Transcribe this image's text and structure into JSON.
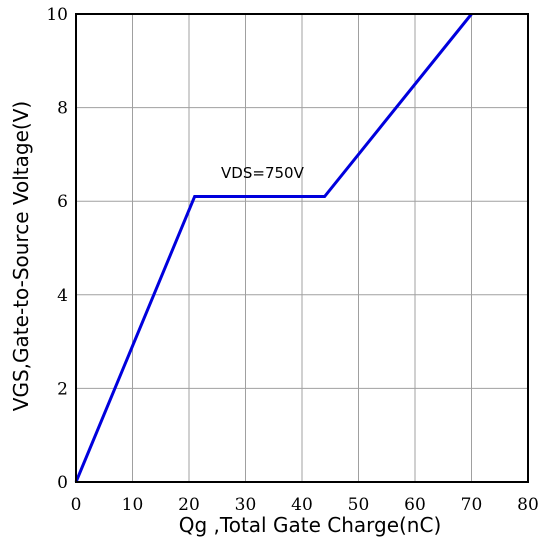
{
  "chart_data": {
    "type": "line",
    "title": "",
    "xlabel": "Qg ,Total Gate Charge(nC)",
    "ylabel": "VGS,Gate-to-Source Voltage(V)",
    "xlim": [
      0,
      80
    ],
    "ylim": [
      0,
      10
    ],
    "x_ticks": [
      "0",
      "10",
      "20",
      "30",
      "40",
      "50",
      "60",
      "70",
      "80"
    ],
    "y_ticks": [
      "0",
      "2",
      "4",
      "6",
      "8",
      "10"
    ],
    "grid": true,
    "series": [
      {
        "color": "#0000dd",
        "x": [
          0,
          21,
          44,
          70
        ],
        "y": [
          0,
          6.1,
          6.1,
          10
        ]
      }
    ],
    "annotations": [
      {
        "text": "VDS=750V",
        "x": 33,
        "y": 6.5
      }
    ]
  }
}
